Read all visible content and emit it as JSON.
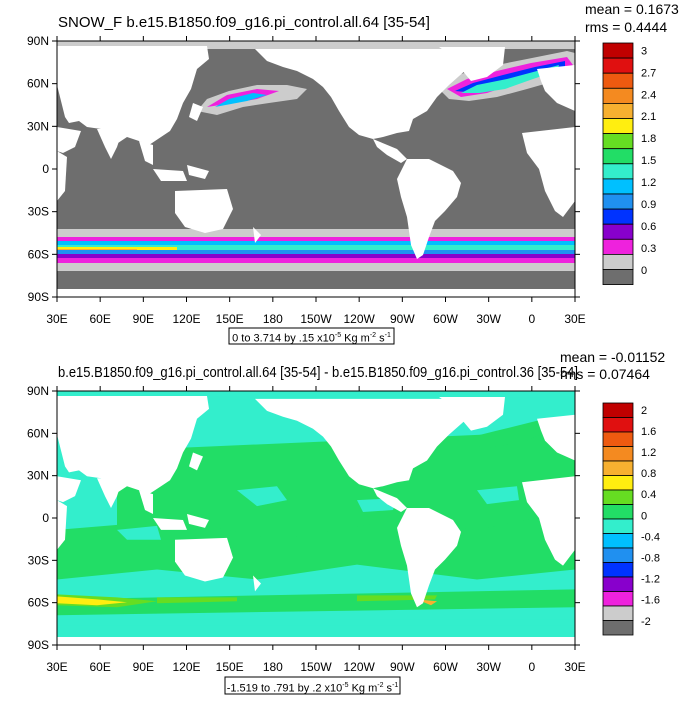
{
  "chart_data": [
    {
      "type": "heatmap",
      "title": "SNOW_F b.e15.B1850.f09_g16.pi_control.all.64 [35-54]",
      "stats": [
        "mean = 0.1673",
        "rms = 0.4444"
      ],
      "xlabel": "",
      "ylabel": "",
      "x_ticks": [
        "30E",
        "60E",
        "90E",
        "120E",
        "150E",
        "180",
        "150W",
        "120W",
        "90W",
        "60W",
        "30W",
        "0",
        "30E"
      ],
      "y_ticks": [
        "90N",
        "60N",
        "30N",
        "0",
        "30S",
        "60S",
        "90S"
      ],
      "colorbar_labels": [
        "3",
        "2.7",
        "2.4",
        "2.1",
        "1.8",
        "1.5",
        "1.2",
        "0.9",
        "0.6",
        "0.3",
        "0"
      ],
      "colors": [
        "#c00000",
        "#e01010",
        "#ee5a10",
        "#f48a20",
        "#f7b030",
        "#ffee10",
        "#66dd22",
        "#22dd66",
        "#33eecc",
        "#00c0ff",
        "#2090f0",
        "#0033ff",
        "#8800cc",
        "#ee22dd",
        "#cccccc",
        "#6e6e6e"
      ],
      "range_note": "0 to 3.714 by .15 x10<sup>-5</sup> Kg m<sup>-2</sup> s<sup>-1</sup>",
      "contour_min": 0,
      "contour_max": 3.714,
      "contour_interval": 0.15,
      "units": "x10-5 Kg m-2 s-1"
    },
    {
      "type": "heatmap",
      "title": "b.e15.B1850.f09_g16.pi_control.all.64 [35-54] - b.e15.B1850.f09_g16.pi_control.36 [35-54]",
      "stats": [
        "mean = -0.01152",
        "rms = 0.07464"
      ],
      "xlabel": "",
      "ylabel": "",
      "x_ticks": [
        "30E",
        "60E",
        "90E",
        "120E",
        "150E",
        "180",
        "150W",
        "120W",
        "90W",
        "60W",
        "30W",
        "0",
        "30E"
      ],
      "y_ticks": [
        "90N",
        "60N",
        "30N",
        "0",
        "30S",
        "60S",
        "90S"
      ],
      "colorbar_labels": [
        "2",
        "1.6",
        "1.2",
        "0.8",
        "0.4",
        "0",
        "-0.4",
        "-0.8",
        "-1.2",
        "-1.6",
        "-2"
      ],
      "colors": [
        "#c00000",
        "#e01010",
        "#ee5a10",
        "#f48a20",
        "#f7b030",
        "#ffee10",
        "#66dd22",
        "#22dd66",
        "#33eecc",
        "#00c0ff",
        "#2090f0",
        "#0033ff",
        "#8800cc",
        "#ee22dd",
        "#cccccc",
        "#6e6e6e"
      ],
      "range_note": "-1.519 to .791 by .2 x10<sup>-5</sup> Kg m<sup>-2</sup> s<sup>-1</sup>",
      "contour_min": -1.519,
      "contour_max": 0.791,
      "contour_interval": 0.2,
      "units": "x10-5 Kg m-2 s-1"
    }
  ]
}
